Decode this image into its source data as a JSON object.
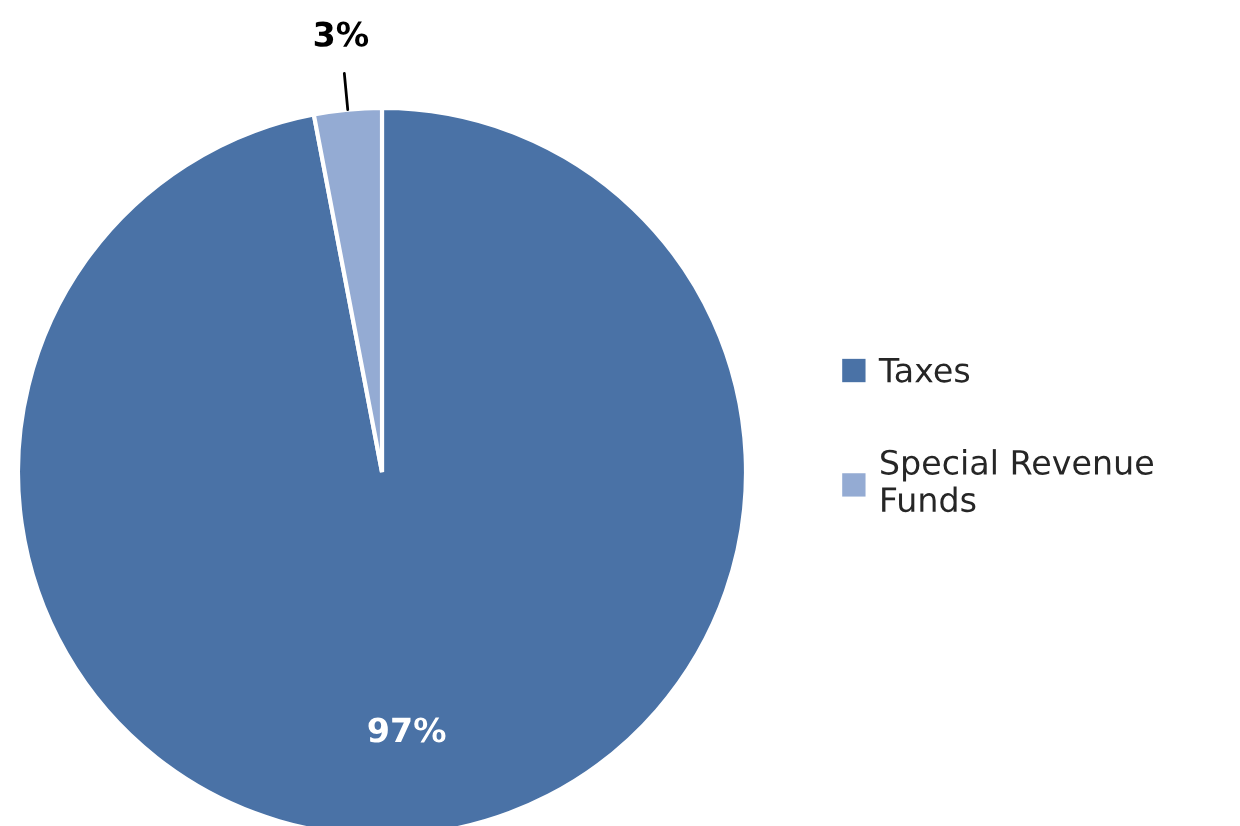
{
  "chart_data": {
    "type": "pie",
    "categories": [
      "Taxes",
      "Special Revenue\nFunds"
    ],
    "values": [
      97,
      3
    ],
    "colors": [
      "#4a72a6",
      "#94abd3"
    ],
    "value_labels": [
      "97%",
      "3%"
    ],
    "legend": "right"
  }
}
